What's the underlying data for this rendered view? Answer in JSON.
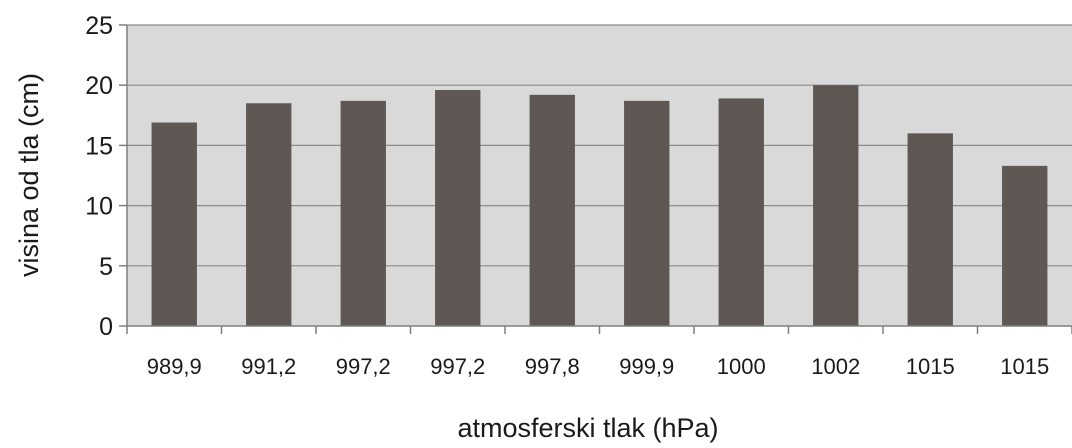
{
  "chart_data": {
    "type": "bar",
    "categories": [
      "989,9",
      "991,2",
      "997,2",
      "997,2",
      "997,8",
      "999,9",
      "1000",
      "1002",
      "1015",
      "1015"
    ],
    "values": [
      16.9,
      18.5,
      18.7,
      19.6,
      19.2,
      18.7,
      18.9,
      20.0,
      16.0,
      13.3
    ],
    "xlabel": "atmosferski tlak  (hPa)",
    "ylabel": "visina od tla (cm)",
    "ylim": [
      0,
      25
    ],
    "yticks": [
      "0",
      "5",
      "10",
      "15",
      "20",
      "25"
    ],
    "grid": true,
    "colors": {
      "plot_background": "#d9d9d9",
      "bar": "#5e5753",
      "grid": "#8c8c8c",
      "axis": "#7f7f7f"
    }
  }
}
